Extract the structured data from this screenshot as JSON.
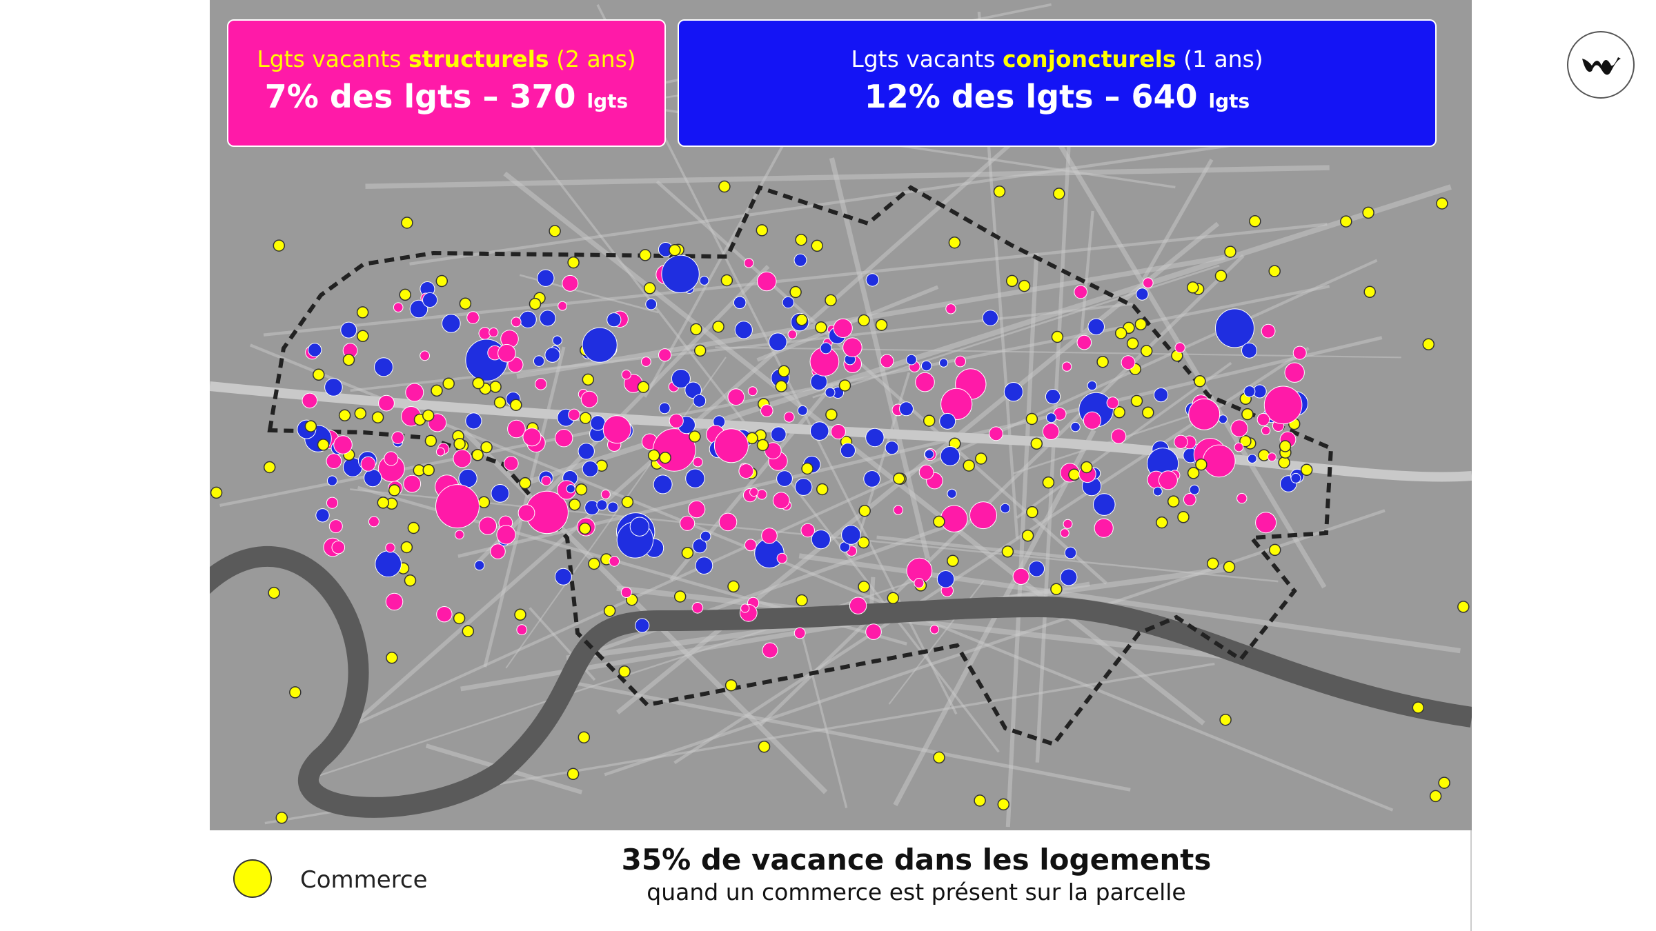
{
  "header": {
    "boxes": [
      {
        "line1": {
          "prefix": "Lgts vacants",
          "keyword": "structurels",
          "suffix": "(2 ans)"
        },
        "line2": {
          "main": "7% des lgts – 370",
          "unit": "lgts"
        }
      },
      {
        "line1": {
          "prefix": "Lgts vacants",
          "keyword": "conjoncturels",
          "suffix": "(1 ans)"
        },
        "line2": {
          "main": "12% des lgts – 640",
          "unit": "lgts"
        }
      }
    ]
  },
  "legend": {
    "label": "Commerce"
  },
  "footer": {
    "title": "35% de vacance dans les logements",
    "subtitle": "quand un commerce est présent sur la parcelle"
  }
}
